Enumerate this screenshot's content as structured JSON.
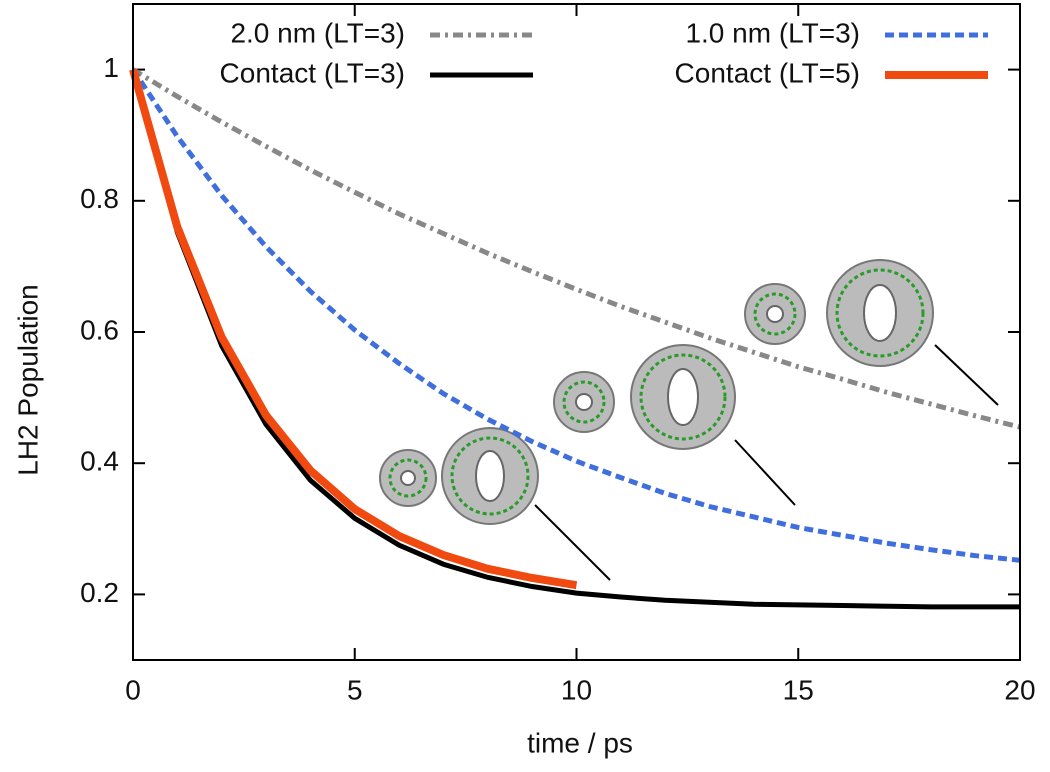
{
  "chart_data": {
    "type": "line",
    "x_label": "time / ps",
    "y_label": "LH2 Population",
    "x": [
      0,
      1,
      2,
      3,
      4,
      5,
      6,
      7,
      8,
      9,
      10,
      11,
      12,
      13,
      14,
      15,
      16,
      17,
      18,
      19,
      20
    ],
    "series": [
      {
        "name": "2.0 nm (LT=3)",
        "color": "#888888",
        "dash": "10,5,3,5",
        "width": 5,
        "values": [
          1,
          0.959,
          0.92,
          0.883,
          0.847,
          0.813,
          0.78,
          0.75,
          0.72,
          0.692,
          0.665,
          0.639,
          0.615,
          0.591,
          0.569,
          0.547,
          0.528,
          0.508,
          0.49,
          0.472,
          0.455
        ]
      },
      {
        "name": "1.0 nm (LT=3)",
        "color": "#3f6fdc",
        "dash": "9,5",
        "width": 5,
        "values": [
          1,
          0.898,
          0.808,
          0.73,
          0.662,
          0.603,
          0.552,
          0.506,
          0.467,
          0.433,
          0.403,
          0.378,
          0.354,
          0.334,
          0.318,
          0.302,
          0.29,
          0.278,
          0.268,
          0.259,
          0.252
        ]
      },
      {
        "name": "Contact (LT=3)",
        "color": "#000000",
        "width": 5,
        "values": [
          1,
          0.752,
          0.579,
          0.459,
          0.374,
          0.316,
          0.275,
          0.246,
          0.226,
          0.212,
          0.202,
          0.196,
          0.191,
          0.188,
          0.185,
          0.184,
          0.183,
          0.182,
          0.181,
          0.181,
          0.181
        ]
      },
      {
        "name": "Contact (LT=5)",
        "color": "#f04a10",
        "width": 8,
        "values": [
          1,
          0.76,
          0.592,
          0.473,
          0.389,
          0.33,
          0.289,
          0.26,
          0.239,
          0.225,
          0.214,
          null,
          null,
          null,
          null,
          null,
          null,
          null,
          null,
          null,
          null
        ]
      }
    ],
    "xlim": [
      0,
      20
    ],
    "ylim": [
      0.1,
      1.1
    ],
    "xticks": [
      0,
      5,
      10,
      15,
      20
    ],
    "yticks": [
      0.2,
      0.4,
      0.6,
      0.8,
      1
    ],
    "legend": "top",
    "grid": false
  }
}
